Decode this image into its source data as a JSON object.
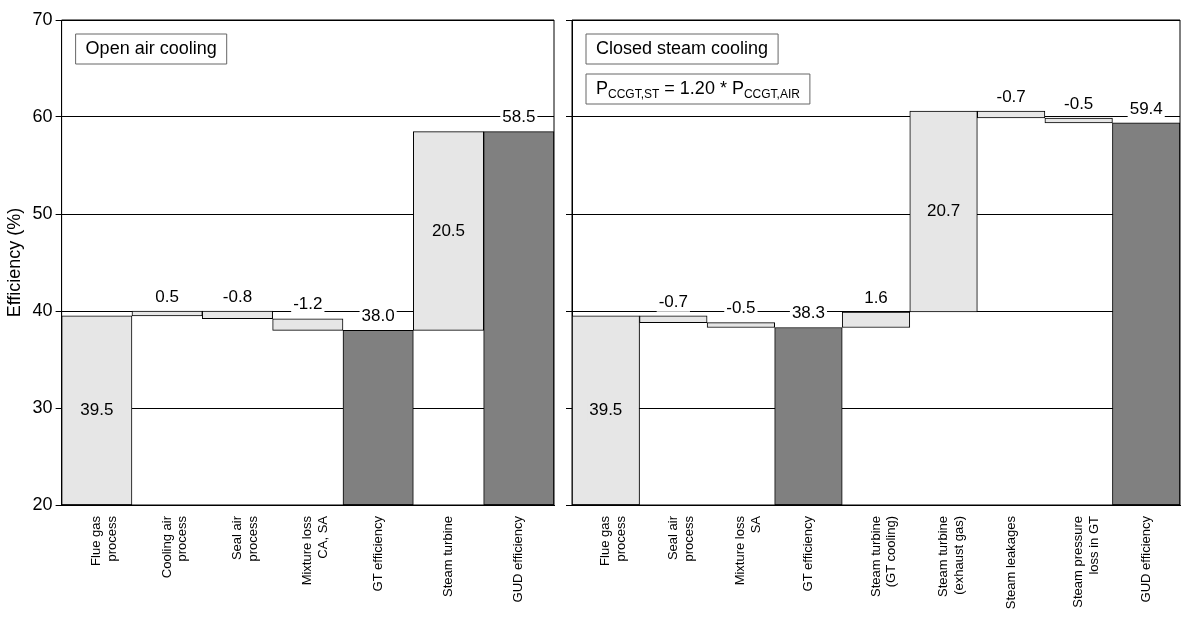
{
  "chart_data": [
    {
      "type": "bar",
      "ylabel": "Efficiency (%)",
      "categories": [
        "Flue gas process",
        "Cooling air process",
        "Seal air process",
        "Mixture loss CA, SA",
        "GT efficiency",
        "Steam turbine",
        "GUD efficiency"
      ],
      "base": [
        20,
        39.5,
        40,
        39.2,
        20,
        38,
        20
      ],
      "values": [
        19.5,
        0.5,
        -0.8,
        -1.2,
        18,
        20.5,
        38.5
      ],
      "colors": [
        "#e6e6e6",
        "#e6e6e6",
        "#e6e6e6",
        "#e6e6e6",
        "#808080",
        "#e6e6e6",
        "#808080"
      ],
      "value_labels": [
        "39.5",
        "0.5",
        "-0.8",
        "-1.2",
        "38.0",
        "20.5",
        "58.5"
      ],
      "ylim": [
        20,
        70
      ],
      "yticks": [
        20,
        30,
        40,
        50,
        60,
        70
      ],
      "grid": "y",
      "legend": false,
      "annotations": [
        "Open air cooling"
      ]
    },
    {
      "type": "bar",
      "categories": [
        "Flue gas process",
        "Seal air process",
        "Mixture loss SA",
        "GT efficiency",
        "Steam turbine (GT cooling)",
        "Steam turbine (exhaust gas)",
        "Steam leakages",
        "Steam pressure loss in GT",
        "GUD efficiency"
      ],
      "base": [
        20,
        39.5,
        38.8,
        20,
        38.3,
        39.9,
        60.6,
        59.9,
        20
      ],
      "values": [
        19.5,
        -0.7,
        -0.5,
        18.3,
        1.6,
        20.7,
        -0.7,
        -0.5,
        39.4
      ],
      "colors": [
        "#e6e6e6",
        "#e6e6e6",
        "#e6e6e6",
        "#808080",
        "#e6e6e6",
        "#e6e6e6",
        "#e6e6e6",
        "#e6e6e6",
        "#808080"
      ],
      "value_labels": [
        "39.5",
        "-0.7",
        "-0.5",
        "38.3",
        "1.6",
        "20.7",
        "-0.7",
        "-0.5",
        "59.4"
      ],
      "ylim": [
        20,
        70
      ],
      "yticks": [
        20,
        30,
        40,
        50,
        60,
        70
      ],
      "grid": "y",
      "legend": false,
      "tick_labels": "x",
      "annotations": [
        "Closed steam cooling",
        "P$_{CCGT,ST}$ = 1.20 * P$_{CCGT,AIR}$"
      ]
    }
  ]
}
